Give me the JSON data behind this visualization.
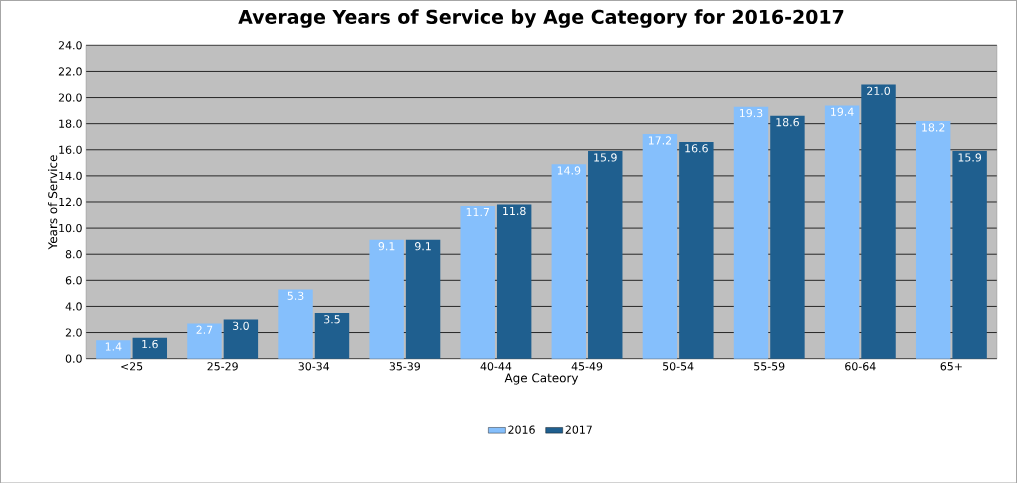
{
  "chart_data": {
    "type": "bar",
    "title": "Average Years of Service by Age Category for 2016-2017",
    "xlabel": "Age Cateory",
    "ylabel": "Years of Service",
    "categories": [
      "<25",
      "25-29",
      "30-34",
      "35-39",
      "40-44",
      "45-49",
      "50-54",
      "55-59",
      "60-64",
      "65+"
    ],
    "series": [
      {
        "name": "2016",
        "color": "#85bffc",
        "values": [
          1.4,
          2.7,
          5.3,
          9.1,
          11.7,
          14.9,
          17.2,
          19.3,
          19.4,
          18.2
        ],
        "value_labels": [
          "1.4",
          "2.7",
          "5.3",
          "9.1",
          "11.7",
          "14.9",
          "17.2",
          "19.3",
          "19.4",
          "18.2"
        ]
      },
      {
        "name": "2017",
        "color": "#1f5f8f",
        "values": [
          1.6,
          3.0,
          3.5,
          9.1,
          11.8,
          15.9,
          16.6,
          18.6,
          21.0,
          15.9
        ],
        "value_labels": [
          "1.6",
          "3.0",
          "3.5",
          "9.1",
          "11.8",
          "15.9",
          "16.6",
          "18.6",
          "21.0",
          "15.9"
        ]
      }
    ],
    "ylim": [
      0,
      24
    ],
    "yticks": [
      {
        "value": 0,
        "label": "0.0"
      },
      {
        "value": 2,
        "label": "2.0"
      },
      {
        "value": 4,
        "label": "4.0"
      },
      {
        "value": 6,
        "label": "6.0"
      },
      {
        "value": 8,
        "label": "8.0"
      },
      {
        "value": 10,
        "label": "10.0"
      },
      {
        "value": 12,
        "label": "12.0"
      },
      {
        "value": 14,
        "label": "14.0"
      },
      {
        "value": 16,
        "label": "16.0"
      },
      {
        "value": 18,
        "label": "18.0"
      },
      {
        "value": 20,
        "label": "20.0"
      },
      {
        "value": 22,
        "label": "22.0"
      },
      {
        "value": 24,
        "label": "24.0"
      }
    ],
    "grid": "y",
    "legend": "bottom"
  }
}
